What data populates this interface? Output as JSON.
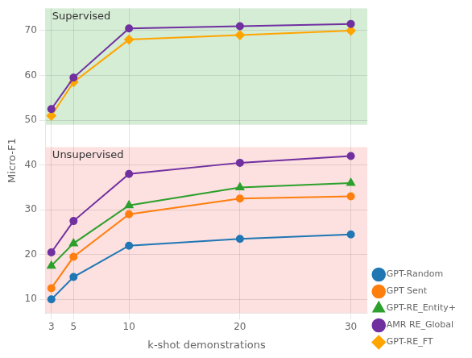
{
  "chart_data": {
    "type": "line",
    "x": [
      3,
      5,
      10,
      20,
      30
    ],
    "series": [
      {
        "name": "GPT-Random",
        "color": "#1f77b4",
        "marker": "circle",
        "values": [
          10,
          15,
          22,
          23.5,
          24.5
        ]
      },
      {
        "name": "GPT Sent",
        "color": "#ff7f0e",
        "marker": "circle",
        "values": [
          12.5,
          19.5,
          29,
          32.5,
          33
        ]
      },
      {
        "name": "GPT-RE_Entity+",
        "color": "#2ca02c",
        "marker": "triangle",
        "values": [
          17.5,
          22.5,
          31,
          35,
          36
        ]
      },
      {
        "name": "AMR RE_Global",
        "color": "#7030a0",
        "marker": "circle",
        "values": [
          20.5,
          27.5,
          38,
          40.5,
          42
        ]
      },
      {
        "name": "AMR RE_Global",
        "color": "#7030a0",
        "marker": "circle",
        "values": [
          52.5,
          59.5,
          70.5,
          71,
          71.5
        ]
      },
      {
        "name": "GPT-RE_FT",
        "color": "#ffa500",
        "marker": "diamond",
        "values": [
          51,
          58.5,
          68,
          69,
          70
        ]
      }
    ],
    "xlabel": "k-shot demonstrations",
    "ylabel": "Micro-F1",
    "xlim": [
      2.5,
      31.5
    ],
    "xticks": [
      3,
      5,
      10,
      20,
      30
    ],
    "ylim": [
      7,
      75
    ],
    "yticks": [
      10,
      20,
      30,
      40,
      50,
      60,
      70
    ],
    "annotations": [
      {
        "text": "Supervised",
        "ymin": 49,
        "ymax": 75,
        "color": "#d5ecd5"
      },
      {
        "text": "Unsupervised",
        "ymin": 7,
        "ymax": 44,
        "color": "#fde0e0"
      }
    ],
    "grid": true,
    "legend": "lower right"
  }
}
